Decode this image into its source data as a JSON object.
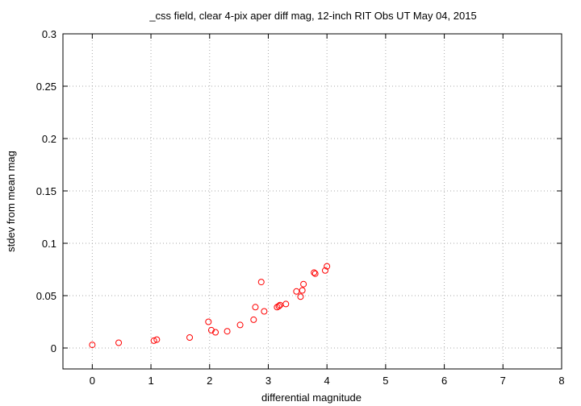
{
  "chart_data": {
    "type": "scatter",
    "title": "_css field, clear 4-pix aper diff mag,  12-inch RIT Obs UT May 04, 2015",
    "xlabel": "differential magnitude",
    "ylabel": "stdev from mean mag",
    "xlim": [
      -0.5,
      8
    ],
    "ylim": [
      -0.02,
      0.3
    ],
    "xticks": [
      0,
      1,
      2,
      3,
      4,
      5,
      6,
      7,
      8
    ],
    "xtick_labels": [
      "0",
      "1",
      "2",
      "3",
      "4",
      "5",
      "6",
      "7",
      "8"
    ],
    "yticks": [
      0,
      0.05,
      0.1,
      0.15,
      0.2,
      0.25,
      0.3
    ],
    "ytick_labels": [
      "0",
      "0.05",
      "0.1",
      "0.15",
      "0.2",
      "0.25",
      "0.3"
    ],
    "grid": true,
    "marker": "open-circle",
    "color": "#ff0000",
    "points": [
      {
        "x": 0.0,
        "y": 0.003
      },
      {
        "x": 0.45,
        "y": 0.005
      },
      {
        "x": 1.05,
        "y": 0.007
      },
      {
        "x": 1.1,
        "y": 0.008
      },
      {
        "x": 1.66,
        "y": 0.01
      },
      {
        "x": 1.98,
        "y": 0.025
      },
      {
        "x": 2.03,
        "y": 0.017
      },
      {
        "x": 2.1,
        "y": 0.015
      },
      {
        "x": 2.3,
        "y": 0.016
      },
      {
        "x": 2.52,
        "y": 0.022
      },
      {
        "x": 2.75,
        "y": 0.027
      },
      {
        "x": 2.78,
        "y": 0.039
      },
      {
        "x": 2.88,
        "y": 0.063
      },
      {
        "x": 2.93,
        "y": 0.035
      },
      {
        "x": 3.15,
        "y": 0.039
      },
      {
        "x": 3.18,
        "y": 0.04
      },
      {
        "x": 3.2,
        "y": 0.041
      },
      {
        "x": 3.3,
        "y": 0.042
      },
      {
        "x": 3.48,
        "y": 0.054
      },
      {
        "x": 3.55,
        "y": 0.049
      },
      {
        "x": 3.58,
        "y": 0.055
      },
      {
        "x": 3.6,
        "y": 0.061
      },
      {
        "x": 3.78,
        "y": 0.072
      },
      {
        "x": 3.8,
        "y": 0.071
      },
      {
        "x": 3.97,
        "y": 0.074
      },
      {
        "x": 4.0,
        "y": 0.078
      }
    ]
  }
}
